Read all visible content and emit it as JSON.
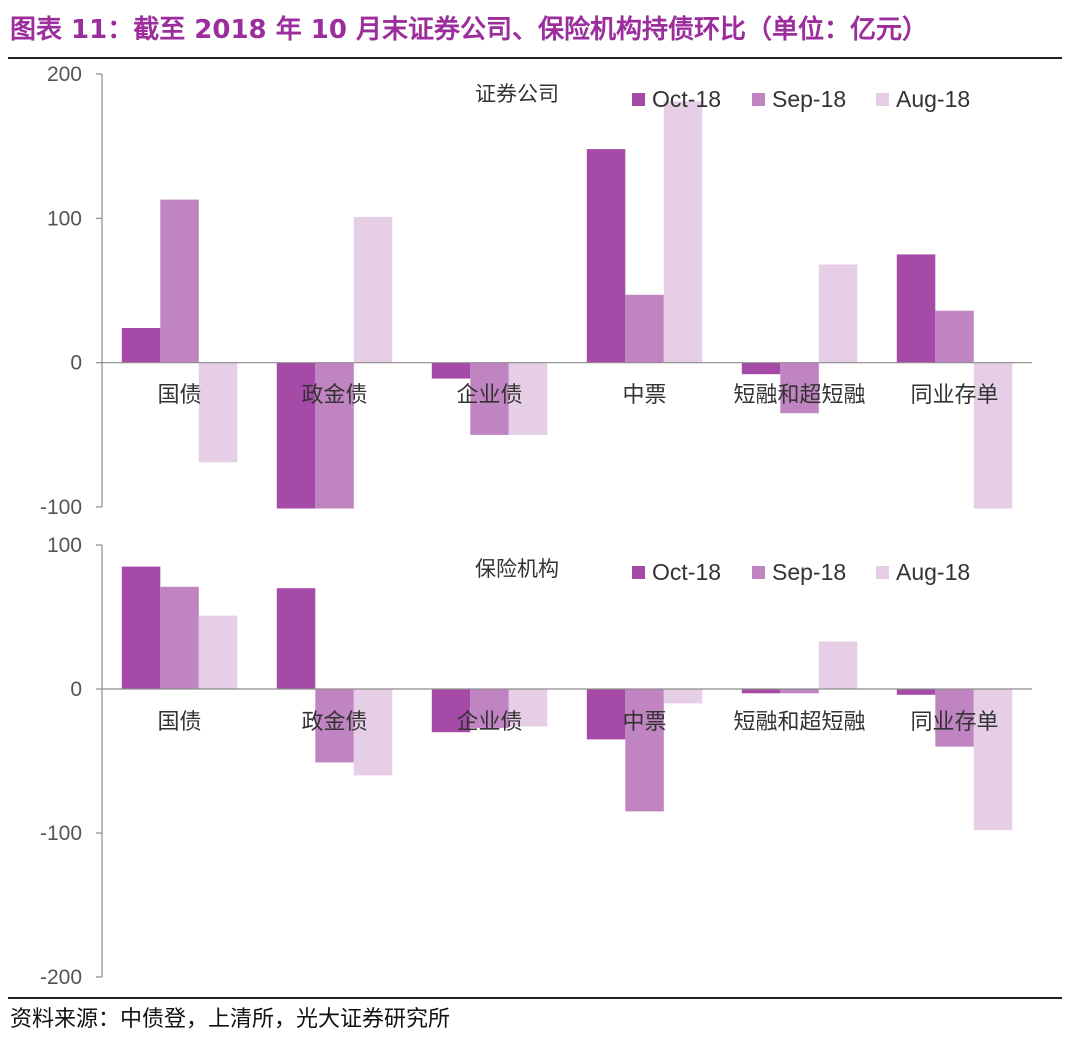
{
  "title": "图表 11：截至 2018 年 10 月末证券公司、保险机构持债环比（单位：亿元）",
  "source": "资料来源：中债登，上清所，光大证券研究所",
  "colors": {
    "title": "#9b2d9c",
    "Oct-18": "#a54aa6",
    "Sep-18": "#c184c2",
    "Aug-18": "#e5cee6",
    "axis": "#8c8c8c"
  },
  "chart_data": [
    {
      "type": "bar",
      "panel_label": "证券公司",
      "categories": [
        "国债",
        "政金债",
        "企业债",
        "中票",
        "短融和超短融",
        "同业存单"
      ],
      "series": [
        {
          "name": "Oct-18",
          "values": [
            24,
            -101,
            -11,
            148,
            -8,
            75
          ]
        },
        {
          "name": "Sep-18",
          "values": [
            113,
            -101,
            -50,
            47,
            -35,
            36
          ]
        },
        {
          "name": "Aug-18",
          "values": [
            -69,
            101,
            -50,
            181,
            68,
            -101
          ]
        }
      ],
      "yticks": [
        -100,
        0,
        100,
        200
      ],
      "ylim": [
        -100,
        200
      ],
      "legend_position": "top-right"
    },
    {
      "type": "bar",
      "panel_label": "保险机构",
      "categories": [
        "国债",
        "政金债",
        "企业债",
        "中票",
        "短融和超短融",
        "同业存单"
      ],
      "series": [
        {
          "name": "Oct-18",
          "values": [
            85,
            70,
            -30,
            -35,
            -3,
            -4
          ]
        },
        {
          "name": "Sep-18",
          "values": [
            71,
            -51,
            -27,
            -85,
            -3,
            -40
          ]
        },
        {
          "name": "Aug-18",
          "values": [
            51,
            -60,
            -26,
            -10,
            33,
            -98
          ]
        }
      ],
      "yticks": [
        -200,
        -100,
        0,
        100
      ],
      "ylim": [
        -200,
        100
      ],
      "legend_position": "top-right"
    }
  ]
}
